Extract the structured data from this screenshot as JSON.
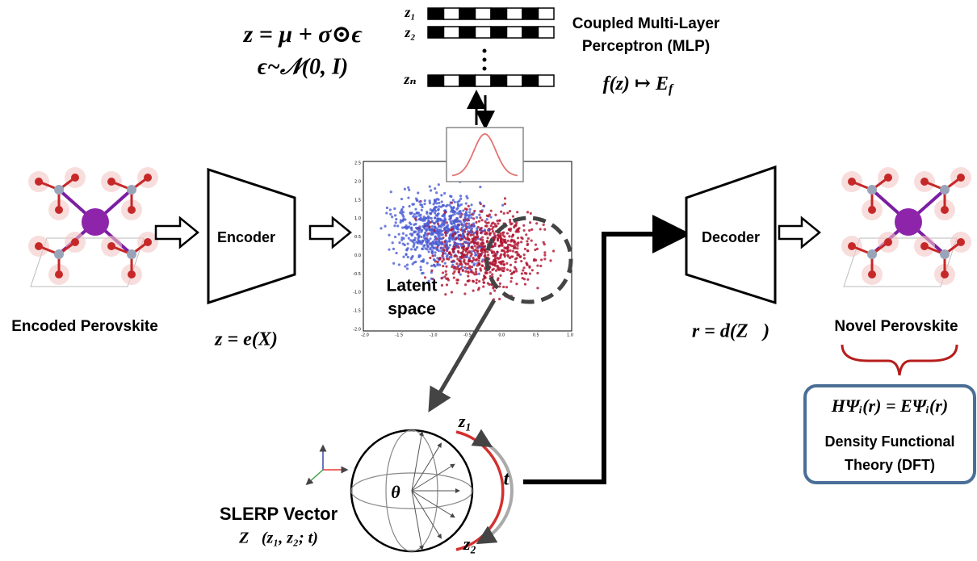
{
  "sampling": {
    "reparam": "z = μ + σ⊙ϵ",
    "noise": "ϵ~𝒩(0, I)"
  },
  "mlp": {
    "latents": [
      "z₁",
      "z₂",
      "zₙ"
    ],
    "title_lines": [
      "Coupled Multi-Layer",
      "Perceptron (MLP)"
    ],
    "function": {
      "main": "f(z) ↦ E",
      "sub": "f"
    }
  },
  "encoder": {
    "label": "Encoder",
    "formula": "z = e(X)"
  },
  "input": {
    "label": "Encoded Perovskite"
  },
  "latent": {
    "label_lines": [
      "Latent",
      "space"
    ],
    "yticks": [
      "2.5",
      "2.0",
      "1.5",
      "1.0",
      "0.5",
      "0.0",
      "-0.5",
      "-1.0",
      "-1.5",
      "-2.0"
    ],
    "xticks": [
      "-2.0",
      "-1.5",
      "-1.0",
      "-0.5",
      "0.0",
      "0.5",
      "1.0"
    ]
  },
  "slerp": {
    "label": "SLERP Vector",
    "formula": "Z⃗(z₁, z₂; t)",
    "theta": "θ",
    "t": "t",
    "z1": "z₁",
    "z2": "z₂"
  },
  "decoder": {
    "label": "Decoder",
    "formula": "r = d(Z⃗)"
  },
  "output": {
    "label": "Novel Perovskite"
  },
  "dft": {
    "equation": "HΨᵢ(r) = EΨᵢ(r)",
    "title_lines": [
      "Density Functional",
      "Theory (DFT)"
    ]
  }
}
